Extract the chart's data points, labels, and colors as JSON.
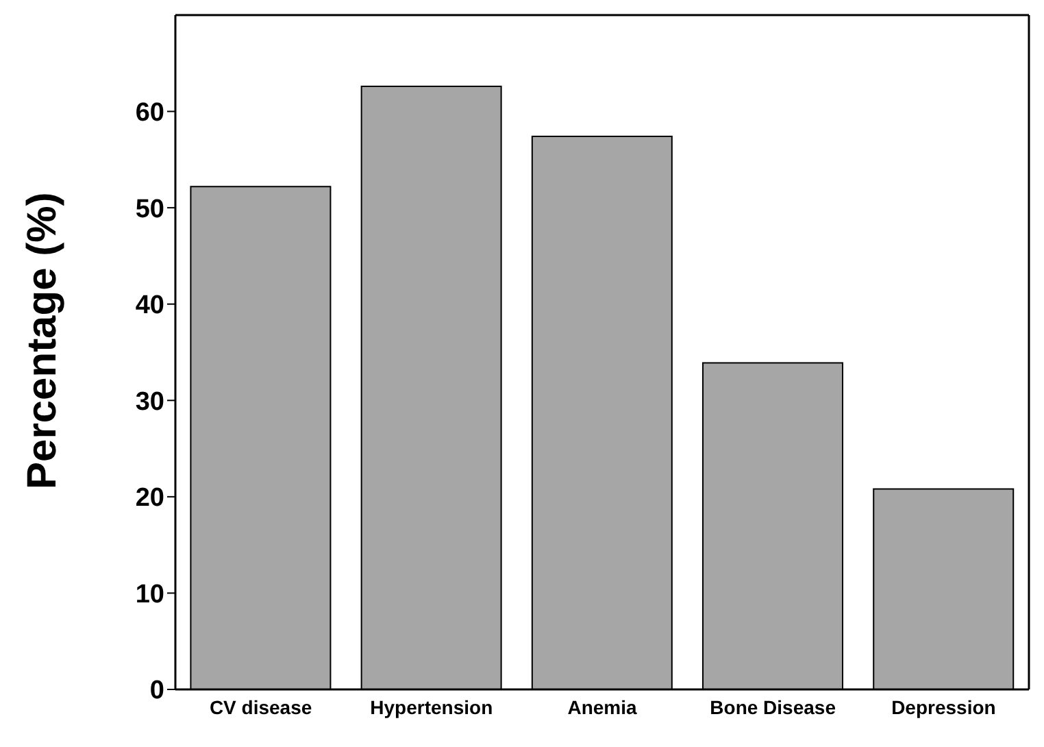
{
  "chart_data": {
    "type": "bar",
    "ylabel": "Percentage (%)",
    "categories": [
      "CV disease",
      "Hypertension",
      "Anemia",
      "Bone Disease",
      "Depression"
    ],
    "values": [
      52.2,
      62.6,
      57.4,
      33.9,
      20.8
    ],
    "color": "#a6a6a6",
    "ylim": [
      0,
      70
    ],
    "yticks": [
      0,
      10,
      20,
      30,
      40,
      50,
      60
    ],
    "grid": false
  }
}
